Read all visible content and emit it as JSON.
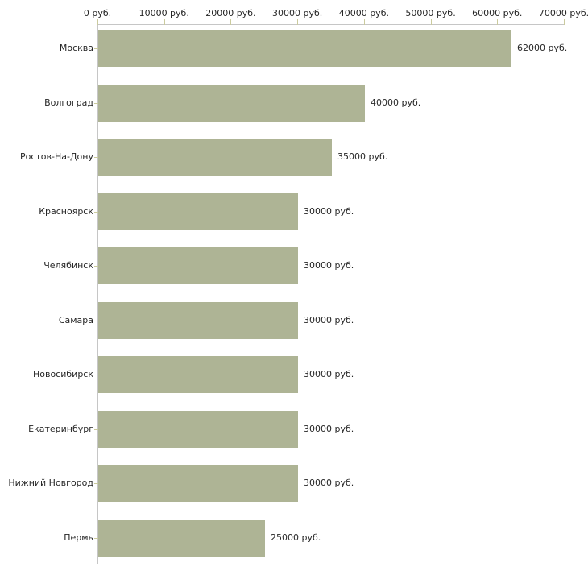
{
  "chart_data": {
    "type": "bar",
    "orientation": "horizontal",
    "categories": [
      "Москва",
      "Волгоград",
      "Ростов-На-Дону",
      "Красноярск",
      "Челябинск",
      "Самара",
      "Новосибирск",
      "Екатеринбург",
      "Нижний Новгород",
      "Пермь"
    ],
    "values": [
      62000,
      40000,
      35000,
      30000,
      30000,
      30000,
      30000,
      30000,
      30000,
      25000
    ],
    "value_labels": [
      "62000 руб.",
      "40000 руб.",
      "35000 руб.",
      "30000 руб.",
      "30000 руб.",
      "30000 руб.",
      "30000 руб.",
      "30000 руб.",
      "30000 руб.",
      "25000 руб."
    ],
    "x_tick_values": [
      0,
      10000,
      20000,
      30000,
      40000,
      50000,
      60000,
      70000
    ],
    "x_tick_labels": [
      "0 руб.",
      "10000 руб.",
      "20000 руб.",
      "30000 руб.",
      "40000 руб.",
      "50000 руб.",
      "60000 руб.",
      "70000 руб."
    ],
    "xlim": [
      0,
      70000
    ],
    "unit": "руб.",
    "grid": false,
    "axis_position": "top",
    "ylabel": "",
    "xlabel": "",
    "title": ""
  },
  "colors": {
    "bar": "#aeb495",
    "axis_line": "#c6c6c6",
    "tick_mark": "#cbcb9e",
    "text": "#262626",
    "background": "#ffffff"
  }
}
